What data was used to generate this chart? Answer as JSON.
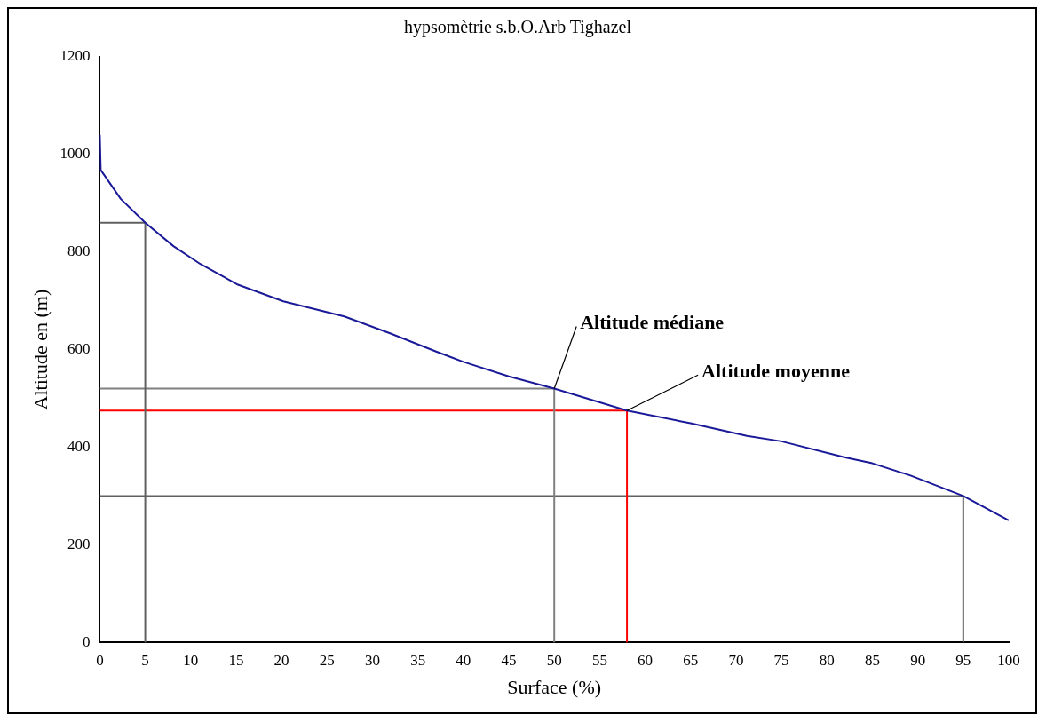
{
  "chart_data": {
    "type": "line",
    "title": "hypsomètrie s.b.O.Arb Tighazel",
    "xlabel": "Surface (%)",
    "ylabel": "Altitude en (m)",
    "xlim": [
      0,
      100
    ],
    "xticks": [
      0,
      5,
      10,
      15,
      20,
      25,
      30,
      35,
      40,
      45,
      50,
      55,
      60,
      65,
      70,
      75,
      80,
      85,
      90,
      95,
      100
    ],
    "ylim": [
      0,
      1200
    ],
    "yticks": [
      0,
      200,
      400,
      600,
      800,
      1000,
      1200
    ],
    "grid": false,
    "legend": false,
    "marker": "none",
    "line_style": "solid",
    "series": [
      {
        "color": "#1a1a99",
        "x": [
          0,
          0.1,
          2.3,
          5,
          8.1,
          11.1,
          15.2,
          20.2,
          26.9,
          32,
          37,
          40,
          45,
          50,
          58,
          65,
          71.2,
          75,
          82,
          85,
          89.2,
          95,
          100
        ],
        "values": [
          1040,
          968,
          909,
          860,
          812,
          775,
          733,
          699,
          668,
          633,
          596,
          575,
          545,
          520,
          475,
          449,
          423,
          412,
          379,
          367,
          342,
          300,
          250
        ]
      },
      {
        "color": "#606060",
        "x": [
          0,
          5,
          5
        ],
        "values": [
          860,
          860,
          0
        ]
      },
      {
        "color": "#808080",
        "x": [
          0,
          50,
          50
        ],
        "values": [
          520,
          520,
          0
        ]
      },
      {
        "color": "#ff0000",
        "x": [
          0,
          58,
          58
        ],
        "values": [
          475,
          475,
          0
        ]
      },
      {
        "color": "#606060",
        "x": [
          0,
          95,
          95
        ],
        "values": [
          300,
          300,
          0
        ]
      }
    ],
    "annotations": [
      {
        "text": "Altitude médiane",
        "x": 50,
        "y": 520
      },
      {
        "text": "Altitude moyenne",
        "x": 58,
        "y": 475
      }
    ]
  }
}
